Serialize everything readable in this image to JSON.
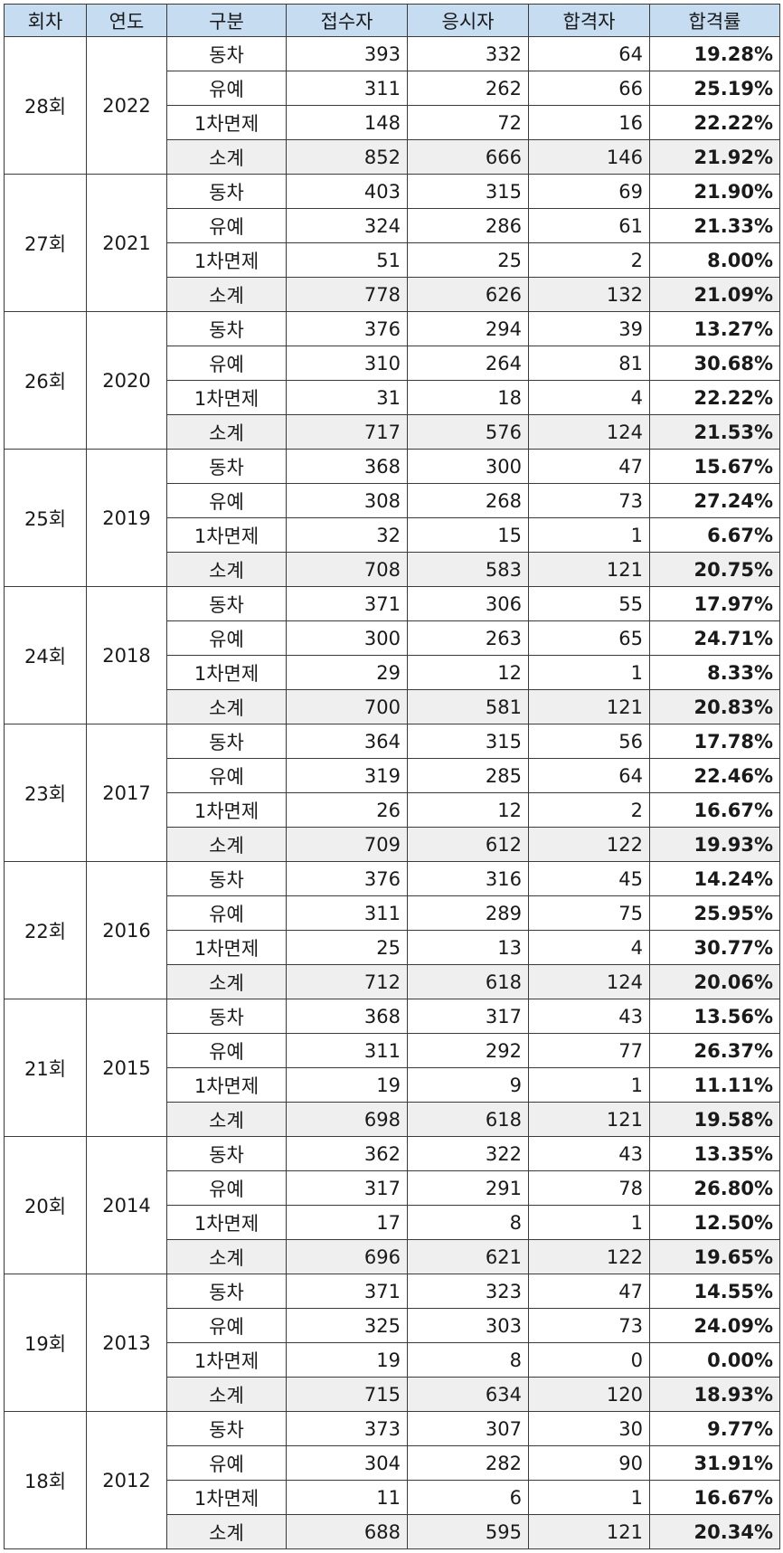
{
  "headers": [
    "회차",
    "연도",
    "구분",
    "접수자",
    "응시자",
    "합격자",
    "합격률"
  ],
  "groups": [
    {
      "round": "28회",
      "year": "2022",
      "rows": [
        {
          "category": "동차",
          "applicants": "393",
          "examinees": "332",
          "passers": "64",
          "rate": "19.28%"
        },
        {
          "category": "유예",
          "applicants": "311",
          "examinees": "262",
          "passers": "66",
          "rate": "25.19%"
        },
        {
          "category": "1차면제",
          "applicants": "148",
          "examinees": "72",
          "passers": "16",
          "rate": "22.22%"
        },
        {
          "category": "소계",
          "applicants": "852",
          "examinees": "666",
          "passers": "146",
          "rate": "21.92%"
        }
      ]
    },
    {
      "round": "27회",
      "year": "2021",
      "rows": [
        {
          "category": "동차",
          "applicants": "403",
          "examinees": "315",
          "passers": "69",
          "rate": "21.90%"
        },
        {
          "category": "유예",
          "applicants": "324",
          "examinees": "286",
          "passers": "61",
          "rate": "21.33%"
        },
        {
          "category": "1차면제",
          "applicants": "51",
          "examinees": "25",
          "passers": "2",
          "rate": "8.00%"
        },
        {
          "category": "소계",
          "applicants": "778",
          "examinees": "626",
          "passers": "132",
          "rate": "21.09%"
        }
      ]
    },
    {
      "round": "26회",
      "year": "2020",
      "rows": [
        {
          "category": "동차",
          "applicants": "376",
          "examinees": "294",
          "passers": "39",
          "rate": "13.27%"
        },
        {
          "category": "유예",
          "applicants": "310",
          "examinees": "264",
          "passers": "81",
          "rate": "30.68%"
        },
        {
          "category": "1차면제",
          "applicants": "31",
          "examinees": "18",
          "passers": "4",
          "rate": "22.22%"
        },
        {
          "category": "소계",
          "applicants": "717",
          "examinees": "576",
          "passers": "124",
          "rate": "21.53%"
        }
      ]
    },
    {
      "round": "25회",
      "year": "2019",
      "rows": [
        {
          "category": "동차",
          "applicants": "368",
          "examinees": "300",
          "passers": "47",
          "rate": "15.67%"
        },
        {
          "category": "유예",
          "applicants": "308",
          "examinees": "268",
          "passers": "73",
          "rate": "27.24%"
        },
        {
          "category": "1차면제",
          "applicants": "32",
          "examinees": "15",
          "passers": "1",
          "rate": "6.67%"
        },
        {
          "category": "소계",
          "applicants": "708",
          "examinees": "583",
          "passers": "121",
          "rate": "20.75%"
        }
      ]
    },
    {
      "round": "24회",
      "year": "2018",
      "rows": [
        {
          "category": "동차",
          "applicants": "371",
          "examinees": "306",
          "passers": "55",
          "rate": "17.97%"
        },
        {
          "category": "유예",
          "applicants": "300",
          "examinees": "263",
          "passers": "65",
          "rate": "24.71%"
        },
        {
          "category": "1차면제",
          "applicants": "29",
          "examinees": "12",
          "passers": "1",
          "rate": "8.33%"
        },
        {
          "category": "소계",
          "applicants": "700",
          "examinees": "581",
          "passers": "121",
          "rate": "20.83%"
        }
      ]
    },
    {
      "round": "23회",
      "year": "2017",
      "rows": [
        {
          "category": "동차",
          "applicants": "364",
          "examinees": "315",
          "passers": "56",
          "rate": "17.78%"
        },
        {
          "category": "유예",
          "applicants": "319",
          "examinees": "285",
          "passers": "64",
          "rate": "22.46%"
        },
        {
          "category": "1차면제",
          "applicants": "26",
          "examinees": "12",
          "passers": "2",
          "rate": "16.67%"
        },
        {
          "category": "소계",
          "applicants": "709",
          "examinees": "612",
          "passers": "122",
          "rate": "19.93%"
        }
      ]
    },
    {
      "round": "22회",
      "year": "2016",
      "rows": [
        {
          "category": "동차",
          "applicants": "376",
          "examinees": "316",
          "passers": "45",
          "rate": "14.24%"
        },
        {
          "category": "유예",
          "applicants": "311",
          "examinees": "289",
          "passers": "75",
          "rate": "25.95%"
        },
        {
          "category": "1차면제",
          "applicants": "25",
          "examinees": "13",
          "passers": "4",
          "rate": "30.77%"
        },
        {
          "category": "소계",
          "applicants": "712",
          "examinees": "618",
          "passers": "124",
          "rate": "20.06%"
        }
      ]
    },
    {
      "round": "21회",
      "year": "2015",
      "rows": [
        {
          "category": "동차",
          "applicants": "368",
          "examinees": "317",
          "passers": "43",
          "rate": "13.56%"
        },
        {
          "category": "유예",
          "applicants": "311",
          "examinees": "292",
          "passers": "77",
          "rate": "26.37%"
        },
        {
          "category": "1차면제",
          "applicants": "19",
          "examinees": "9",
          "passers": "1",
          "rate": "11.11%"
        },
        {
          "category": "소계",
          "applicants": "698",
          "examinees": "618",
          "passers": "121",
          "rate": "19.58%"
        }
      ]
    },
    {
      "round": "20회",
      "year": "2014",
      "rows": [
        {
          "category": "동차",
          "applicants": "362",
          "examinees": "322",
          "passers": "43",
          "rate": "13.35%"
        },
        {
          "category": "유예",
          "applicants": "317",
          "examinees": "291",
          "passers": "78",
          "rate": "26.80%"
        },
        {
          "category": "1차면제",
          "applicants": "17",
          "examinees": "8",
          "passers": "1",
          "rate": "12.50%"
        },
        {
          "category": "소계",
          "applicants": "696",
          "examinees": "621",
          "passers": "122",
          "rate": "19.65%"
        }
      ]
    },
    {
      "round": "19회",
      "year": "2013",
      "rows": [
        {
          "category": "동차",
          "applicants": "371",
          "examinees": "323",
          "passers": "47",
          "rate": "14.55%"
        },
        {
          "category": "유예",
          "applicants": "325",
          "examinees": "303",
          "passers": "73",
          "rate": "24.09%"
        },
        {
          "category": "1차면제",
          "applicants": "19",
          "examinees": "8",
          "passers": "0",
          "rate": "0.00%"
        },
        {
          "category": "소계",
          "applicants": "715",
          "examinees": "634",
          "passers": "120",
          "rate": "18.93%"
        }
      ]
    },
    {
      "round": "18회",
      "year": "2012",
      "rows": [
        {
          "category": "동차",
          "applicants": "373",
          "examinees": "307",
          "passers": "30",
          "rate": "9.77%"
        },
        {
          "category": "유예",
          "applicants": "304",
          "examinees": "282",
          "passers": "90",
          "rate": "31.91%"
        },
        {
          "category": "1차면제",
          "applicants": "11",
          "examinees": "6",
          "passers": "1",
          "rate": "16.67%"
        },
        {
          "category": "소계",
          "applicants": "688",
          "examinees": "595",
          "passers": "121",
          "rate": "20.34%"
        }
      ]
    }
  ],
  "colors": {
    "header_bg": "#c6dcf1",
    "rate_text": "#1f72c3",
    "subtotal_bg": "#efefef",
    "border": "#3a3a3a"
  }
}
